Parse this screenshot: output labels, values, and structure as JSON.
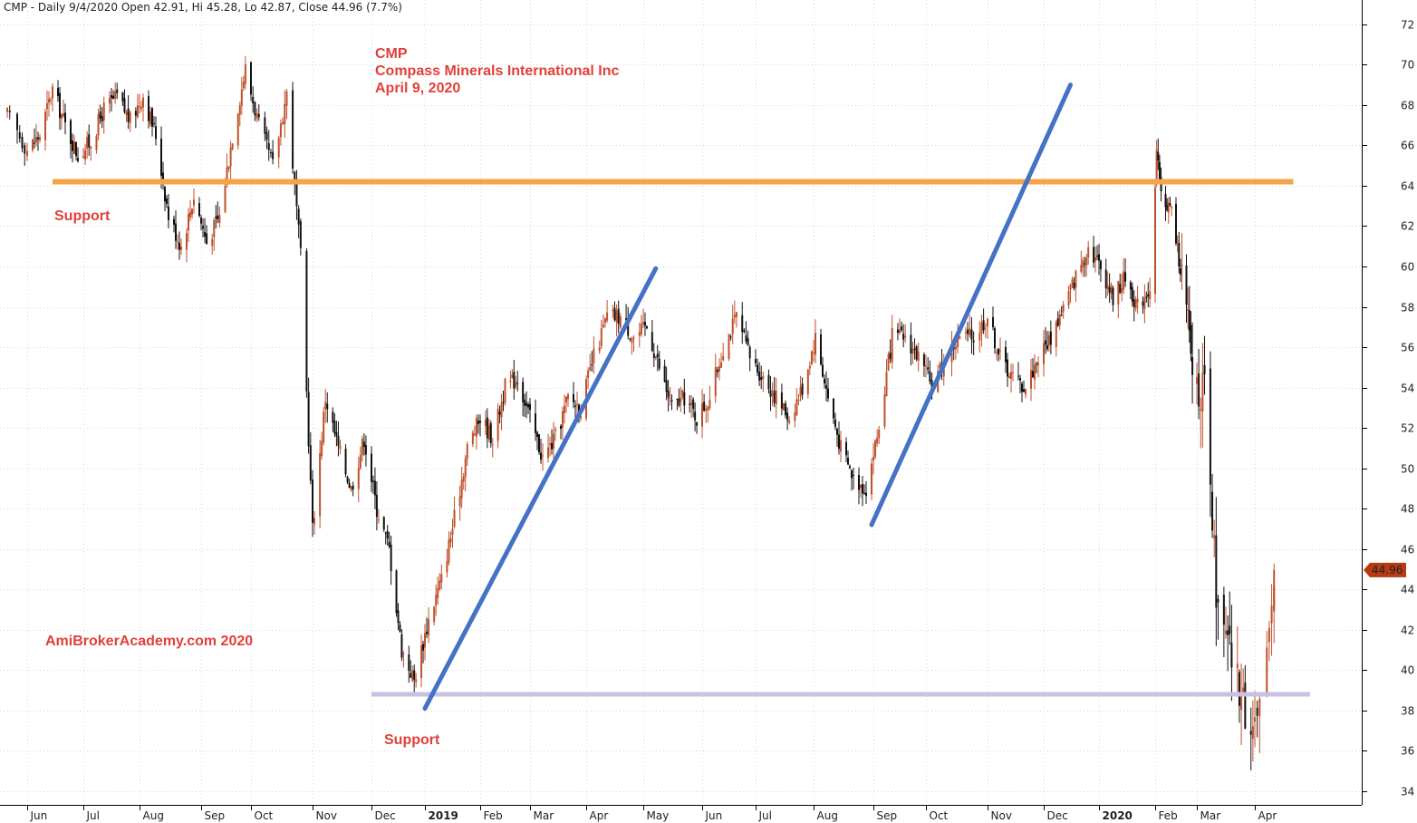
{
  "header": {
    "title": "CMP - Daily 9/4/2020 Open 42.91, Hi 45.28, Lo 42.87, Close 44.96 (7.7%)"
  },
  "colors": {
    "up_candle": "#c0502a",
    "down_candle": "#111111",
    "annotation_red": "#e0403a",
    "resistance_orange": "#f7a34a",
    "support_purple": "#c9c1e2",
    "trendline_blue": "#4472c4",
    "price_tag": "#b83a14",
    "grid": "#d8d8d8"
  },
  "annotations": {
    "symbol": "CMP",
    "company": "Compass Minerals International Inc",
    "date": "April 9, 2020",
    "support_upper": "Support",
    "support_lower": "Support",
    "watermark": "AmiBrokerAcademy.com  2020"
  },
  "chart_data": {
    "type": "candlestick",
    "title": "CMP - Daily 9/4/2020 Open 42.91, Hi 45.28, Lo 42.87, Close 44.96 (7.7%)",
    "ylim": [
      33.5,
      72.8
    ],
    "y_ticks": [
      34,
      36,
      38,
      40,
      42,
      44,
      46,
      48,
      50,
      52,
      54,
      56,
      58,
      60,
      62,
      64,
      66,
      68,
      70,
      72
    ],
    "x_tick_labels": [
      {
        "label": "Jun",
        "date": "2018-06-01",
        "bold": false
      },
      {
        "label": "Jul",
        "date": "2018-07-02",
        "bold": false
      },
      {
        "label": "Aug",
        "date": "2018-08-01",
        "bold": false
      },
      {
        "label": "Sep",
        "date": "2018-09-04",
        "bold": false
      },
      {
        "label": "Oct",
        "date": "2018-10-01",
        "bold": false
      },
      {
        "label": "Nov",
        "date": "2018-11-01",
        "bold": false
      },
      {
        "label": "Dec",
        "date": "2018-12-03",
        "bold": false
      },
      {
        "label": "2019",
        "date": "2019-01-02",
        "bold": true
      },
      {
        "label": "Feb",
        "date": "2019-02-01",
        "bold": false
      },
      {
        "label": "Mar",
        "date": "2019-03-01",
        "bold": false
      },
      {
        "label": "Apr",
        "date": "2019-04-01",
        "bold": false
      },
      {
        "label": "May",
        "date": "2019-05-01",
        "bold": false
      },
      {
        "label": "Jun",
        "date": "2019-06-03",
        "bold": false
      },
      {
        "label": "Jul",
        "date": "2019-07-01",
        "bold": false
      },
      {
        "label": "Aug",
        "date": "2019-08-01",
        "bold": false
      },
      {
        "label": "Sep",
        "date": "2019-09-03",
        "bold": false
      },
      {
        "label": "Oct",
        "date": "2019-10-01",
        "bold": false
      },
      {
        "label": "Nov",
        "date": "2019-11-01",
        "bold": false
      },
      {
        "label": "Dec",
        "date": "2019-12-02",
        "bold": false
      },
      {
        "label": "2020",
        "date": "2020-01-02",
        "bold": true
      },
      {
        "label": "Feb",
        "date": "2020-02-03",
        "bold": false
      },
      {
        "label": "Mar",
        "date": "2020-03-02",
        "bold": false
      },
      {
        "label": "Apr",
        "date": "2020-04-01",
        "bold": false
      }
    ],
    "last_price": 44.96,
    "last_price_label": "44.96",
    "resistance_level": {
      "value": 64.2,
      "from": "2018-06-15",
      "to": "2020-04-17"
    },
    "support_level": {
      "value": 38.8,
      "from": "2018-12-03",
      "to": "2020-04-24"
    },
    "trendlines": [
      {
        "from": [
          "2019-01-02",
          38.1
        ],
        "to": [
          "2019-05-08",
          59.9
        ]
      },
      {
        "from": [
          "2019-09-02",
          47.2
        ],
        "to": [
          "2019-12-17",
          69.0
        ]
      }
    ],
    "close_path": [
      [
        "2018-05-24",
        67.5
      ],
      [
        "2018-06-01",
        65.8
      ],
      [
        "2018-06-08",
        66.5
      ],
      [
        "2018-06-15",
        68.8
      ],
      [
        "2018-06-22",
        67.0
      ],
      [
        "2018-06-29",
        65.5
      ],
      [
        "2018-07-06",
        66.2
      ],
      [
        "2018-07-13",
        67.8
      ],
      [
        "2018-07-20",
        68.4
      ],
      [
        "2018-07-27",
        67.2
      ],
      [
        "2018-08-03",
        68.5
      ],
      [
        "2018-08-10",
        66.5
      ],
      [
        "2018-08-17",
        62.5
      ],
      [
        "2018-08-24",
        61.0
      ],
      [
        "2018-08-31",
        63.5
      ],
      [
        "2018-09-07",
        61.2
      ],
      [
        "2018-09-14",
        62.5
      ],
      [
        "2018-09-21",
        66.5
      ],
      [
        "2018-09-28",
        69.8
      ],
      [
        "2018-10-05",
        67.0
      ],
      [
        "2018-10-12",
        65.0
      ],
      [
        "2018-10-19",
        68.6
      ],
      [
        "2018-10-26",
        60.5
      ],
      [
        "2018-11-01",
        47.0
      ],
      [
        "2018-11-08",
        53.5
      ],
      [
        "2018-11-15",
        51.0
      ],
      [
        "2018-11-22",
        49.0
      ],
      [
        "2018-11-29",
        51.5
      ],
      [
        "2018-12-06",
        48.0
      ],
      [
        "2018-12-13",
        46.0
      ],
      [
        "2018-12-20",
        41.0
      ],
      [
        "2018-12-27",
        39.5
      ],
      [
        "2019-01-04",
        42.5
      ],
      [
        "2019-01-11",
        44.5
      ],
      [
        "2019-01-18",
        47.5
      ],
      [
        "2019-01-25",
        51.0
      ],
      [
        "2019-02-01",
        52.5
      ],
      [
        "2019-02-08",
        51.5
      ],
      [
        "2019-02-15",
        54.0
      ],
      [
        "2019-02-22",
        54.5
      ],
      [
        "2019-03-01",
        52.5
      ],
      [
        "2019-03-08",
        50.5
      ],
      [
        "2019-03-15",
        51.5
      ],
      [
        "2019-03-22",
        53.5
      ],
      [
        "2019-03-29",
        53.0
      ],
      [
        "2019-04-05",
        55.5
      ],
      [
        "2019-04-12",
        57.5
      ],
      [
        "2019-04-19",
        57.5
      ],
      [
        "2019-04-26",
        56.5
      ],
      [
        "2019-05-03",
        57.0
      ],
      [
        "2019-05-10",
        55.0
      ],
      [
        "2019-05-17",
        53.0
      ],
      [
        "2019-05-24",
        53.5
      ],
      [
        "2019-05-31",
        52.5
      ],
      [
        "2019-06-07",
        53.5
      ],
      [
        "2019-06-14",
        56.0
      ],
      [
        "2019-06-21",
        57.5
      ],
      [
        "2019-06-28",
        55.5
      ],
      [
        "2019-07-05",
        54.5
      ],
      [
        "2019-07-12",
        53.5
      ],
      [
        "2019-07-19",
        52.5
      ],
      [
        "2019-07-26",
        54.0
      ],
      [
        "2019-08-02",
        56.5
      ],
      [
        "2019-08-09",
        53.5
      ],
      [
        "2019-08-16",
        51.0
      ],
      [
        "2019-08-23",
        49.5
      ],
      [
        "2019-08-30",
        49.0
      ],
      [
        "2019-09-06",
        52.0
      ],
      [
        "2019-09-13",
        56.5
      ],
      [
        "2019-09-20",
        56.5
      ],
      [
        "2019-09-27",
        55.5
      ],
      [
        "2019-10-04",
        54.0
      ],
      [
        "2019-10-11",
        55.5
      ],
      [
        "2019-10-18",
        56.5
      ],
      [
        "2019-10-25",
        56.5
      ],
      [
        "2019-11-01",
        57.5
      ],
      [
        "2019-11-08",
        55.5
      ],
      [
        "2019-11-15",
        54.5
      ],
      [
        "2019-11-22",
        54.0
      ],
      [
        "2019-11-29",
        55.5
      ],
      [
        "2019-12-06",
        56.5
      ],
      [
        "2019-12-13",
        58.0
      ],
      [
        "2019-12-20",
        59.5
      ],
      [
        "2019-12-27",
        61.0
      ],
      [
        "2020-01-03",
        60.0
      ],
      [
        "2020-01-10",
        58.5
      ],
      [
        "2020-01-17",
        59.5
      ],
      [
        "2020-01-24",
        58.0
      ],
      [
        "2020-01-31",
        59.0
      ],
      [
        "2020-02-04",
        65.5
      ],
      [
        "2020-02-07",
        63.5
      ],
      [
        "2020-02-14",
        62.8
      ],
      [
        "2020-02-21",
        59.5
      ],
      [
        "2020-02-28",
        55.0
      ],
      [
        "2020-03-06",
        53.5
      ],
      [
        "2020-03-09",
        48.5
      ],
      [
        "2020-03-13",
        42.5
      ],
      [
        "2020-03-20",
        40.5
      ],
      [
        "2020-03-27",
        38.0
      ],
      [
        "2020-04-03",
        37.5
      ],
      [
        "2020-04-06",
        40.0
      ],
      [
        "2020-04-09",
        44.96
      ]
    ]
  }
}
